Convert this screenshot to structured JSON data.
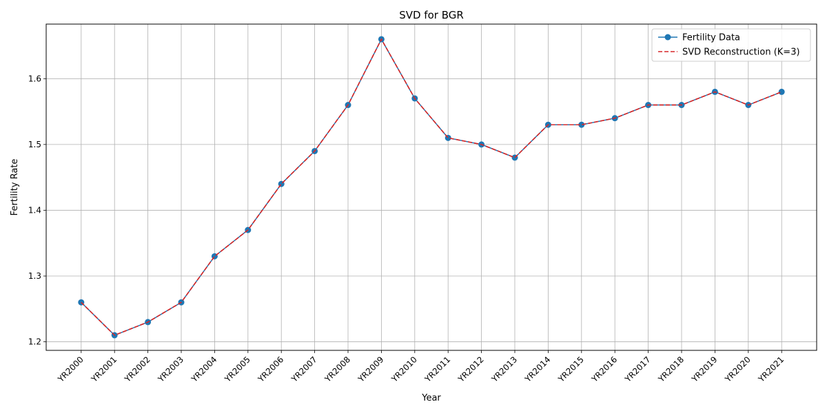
{
  "chart_data": {
    "type": "line",
    "title": "SVD for BGR",
    "xlabel": "Year",
    "ylabel": "Fertility Rate",
    "categories": [
      "YR2000",
      "YR2001",
      "YR2002",
      "YR2003",
      "YR2004",
      "YR2005",
      "YR2006",
      "YR2007",
      "YR2008",
      "YR2009",
      "YR2010",
      "YR2011",
      "YR2012",
      "YR2013",
      "YR2014",
      "YR2015",
      "YR2016",
      "YR2017",
      "YR2018",
      "YR2019",
      "YR2020",
      "YR2021"
    ],
    "yticks": [
      1.2,
      1.3,
      1.4,
      1.5,
      1.6
    ],
    "ylim": [
      1.187,
      1.683
    ],
    "grid": true,
    "legend_position": "top-right",
    "series": [
      {
        "name": "Fertility Data",
        "color": "#1f77b4",
        "style": "solid",
        "marker": "circle",
        "values": [
          1.26,
          1.21,
          1.23,
          1.26,
          1.33,
          1.37,
          1.44,
          1.49,
          1.56,
          1.66,
          1.57,
          1.51,
          1.5,
          1.48,
          1.53,
          1.53,
          1.54,
          1.56,
          1.56,
          1.58,
          1.56,
          1.58
        ]
      },
      {
        "name": "SVD Reconstruction (K=3)",
        "color": "#d62728",
        "style": "dashed",
        "marker": "none",
        "values": [
          1.26,
          1.21,
          1.23,
          1.26,
          1.33,
          1.37,
          1.44,
          1.49,
          1.56,
          1.66,
          1.57,
          1.51,
          1.5,
          1.48,
          1.53,
          1.53,
          1.54,
          1.56,
          1.56,
          1.58,
          1.56,
          1.58
        ]
      }
    ]
  }
}
